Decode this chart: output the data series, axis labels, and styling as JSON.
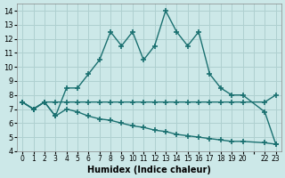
{
  "xlabel": "Humidex (Indice chaleur)",
  "bg_color": "#cce8e8",
  "grid_color": "#afd0d0",
  "line_color": "#1a7070",
  "xlim": [
    -0.5,
    23.5
  ],
  "ylim": [
    4,
    14.5
  ],
  "yticks": [
    4,
    5,
    6,
    7,
    8,
    9,
    10,
    11,
    12,
    13,
    14
  ],
  "xtick_pos": [
    0,
    1,
    2,
    3,
    4,
    5,
    6,
    7,
    8,
    9,
    10,
    11,
    12,
    13,
    14,
    15,
    16,
    17,
    18,
    19,
    20,
    21,
    22,
    23
  ],
  "xtick_labels": [
    "0",
    "1",
    "2",
    "3",
    "4",
    "5",
    "6",
    "7",
    "8",
    "9",
    "10",
    "11",
    "12",
    "13",
    "14",
    "15",
    "16",
    "17",
    "18",
    "19",
    "20",
    "",
    "22",
    "23"
  ],
  "line1_x": [
    0,
    1,
    2,
    3,
    4,
    5,
    6,
    7,
    8,
    9,
    10,
    11,
    12,
    13,
    14,
    15,
    16,
    17,
    18,
    19,
    20,
    22,
    23
  ],
  "line1_y": [
    7.5,
    7.0,
    7.5,
    6.5,
    8.5,
    8.5,
    9.5,
    10.5,
    12.5,
    11.5,
    12.5,
    10.5,
    11.5,
    14.0,
    12.5,
    11.5,
    12.5,
    9.5,
    8.5,
    8.0,
    8.0,
    6.8,
    4.5
  ],
  "line2_x": [
    0,
    1,
    2,
    3,
    4,
    5,
    6,
    7,
    8,
    9,
    10,
    11,
    12,
    13,
    14,
    15,
    16,
    17,
    18,
    19,
    20,
    22,
    23
  ],
  "line2_y": [
    7.5,
    7.0,
    7.5,
    7.5,
    7.5,
    7.5,
    7.5,
    7.5,
    7.5,
    7.5,
    7.5,
    7.5,
    7.5,
    7.5,
    7.5,
    7.5,
    7.5,
    7.5,
    7.5,
    7.5,
    7.5,
    7.5,
    8.0
  ],
  "line3_x": [
    0,
    1,
    2,
    3,
    4,
    5,
    6,
    7,
    8,
    9,
    10,
    11,
    12,
    13,
    14,
    15,
    16,
    17,
    18,
    19,
    20,
    22,
    23
  ],
  "line3_y": [
    7.5,
    7.0,
    7.5,
    6.5,
    7.0,
    6.8,
    6.5,
    6.3,
    6.2,
    6.0,
    5.8,
    5.7,
    5.5,
    5.4,
    5.2,
    5.1,
    5.0,
    4.9,
    4.8,
    4.7,
    4.7,
    4.6,
    4.5
  ]
}
